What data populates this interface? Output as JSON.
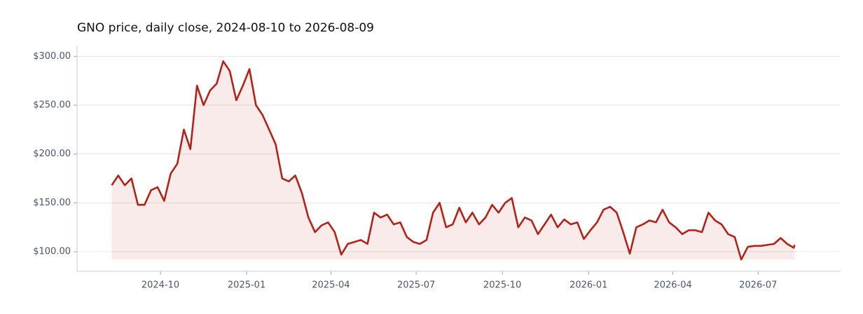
{
  "chart_data": {
    "type": "line",
    "title": "GNO price, daily close, 2024-08-10 to 2026-08-09",
    "x": [
      "2024-08-10",
      "2024-08-17",
      "2024-08-24",
      "2024-08-31",
      "2024-09-07",
      "2024-09-14",
      "2024-09-21",
      "2024-09-28",
      "2024-10-05",
      "2024-10-12",
      "2024-10-19",
      "2024-10-26",
      "2024-11-02",
      "2024-11-09",
      "2024-11-16",
      "2024-11-23",
      "2024-11-30",
      "2024-12-07",
      "2024-12-14",
      "2024-12-21",
      "2024-12-28",
      "2025-01-04",
      "2025-01-11",
      "2025-01-18",
      "2025-01-25",
      "2025-02-01",
      "2025-02-08",
      "2025-02-15",
      "2025-02-22",
      "2025-03-01",
      "2025-03-08",
      "2025-03-15",
      "2025-03-22",
      "2025-03-29",
      "2025-04-05",
      "2025-04-12",
      "2025-04-19",
      "2025-04-26",
      "2025-05-03",
      "2025-05-10",
      "2025-05-17",
      "2025-05-24",
      "2025-05-31",
      "2025-06-07",
      "2025-06-14",
      "2025-06-21",
      "2025-06-28",
      "2025-07-05",
      "2025-07-12",
      "2025-07-19",
      "2025-07-26",
      "2025-08-02",
      "2025-08-09",
      "2025-08-16",
      "2025-08-23",
      "2025-08-30",
      "2025-09-06",
      "2025-09-13",
      "2025-09-20",
      "2025-09-27",
      "2025-10-04",
      "2025-10-11",
      "2025-10-18",
      "2025-10-25",
      "2025-11-01",
      "2025-11-08",
      "2025-11-15",
      "2025-11-22",
      "2025-11-29",
      "2025-12-06",
      "2025-12-13",
      "2025-12-20",
      "2025-12-27",
      "2026-01-03",
      "2026-01-10",
      "2026-01-17",
      "2026-01-24",
      "2026-01-31",
      "2026-02-07",
      "2026-02-14",
      "2026-02-21",
      "2026-02-28",
      "2026-03-07",
      "2026-03-14",
      "2026-03-21",
      "2026-03-28",
      "2026-04-04",
      "2026-04-11",
      "2026-04-18",
      "2026-04-25",
      "2026-05-02",
      "2026-05-09",
      "2026-05-16",
      "2026-05-23",
      "2026-05-30",
      "2026-06-06",
      "2026-06-13",
      "2026-06-20",
      "2026-06-27",
      "2026-07-04",
      "2026-07-11",
      "2026-07-18",
      "2026-07-25",
      "2026-08-01",
      "2026-08-08",
      "2026-08-09"
    ],
    "series": [
      {
        "name": "GNO",
        "color": "#b22218",
        "values": [
          168,
          178,
          168,
          175,
          148,
          148,
          163,
          166,
          152,
          180,
          190,
          225,
          205,
          270,
          250,
          265,
          272,
          295,
          285,
          255,
          270,
          287,
          250,
          240,
          225,
          210,
          175,
          172,
          178,
          160,
          135,
          120,
          127,
          130,
          120,
          97,
          108,
          110,
          112,
          108,
          140,
          135,
          138,
          128,
          130,
          115,
          110,
          108,
          112,
          140,
          150,
          125,
          128,
          145,
          130,
          140,
          128,
          135,
          148,
          140,
          150,
          155,
          125,
          135,
          132,
          118,
          128,
          138,
          125,
          133,
          128,
          130,
          113,
          122,
          130,
          143,
          146,
          140,
          120,
          98,
          125,
          128,
          132,
          130,
          143,
          130,
          125,
          118,
          122,
          122,
          120,
          140,
          132,
          128,
          118,
          115,
          92,
          105,
          106,
          106,
          107,
          108,
          114,
          108,
          104,
          107
        ]
      }
    ],
    "xlim": [
      "2024-07-04",
      "2026-09-27"
    ],
    "xticks": [
      {
        "value": "2024-10-01",
        "label": "2024-10"
      },
      {
        "value": "2025-01-01",
        "label": "2025-01"
      },
      {
        "value": "2025-04-01",
        "label": "2025-04"
      },
      {
        "value": "2025-07-01",
        "label": "2025-07"
      },
      {
        "value": "2025-10-01",
        "label": "2025-10"
      },
      {
        "value": "2026-01-01",
        "label": "2026-01"
      },
      {
        "value": "2026-04-01",
        "label": "2026-04"
      },
      {
        "value": "2026-07-01",
        "label": "2026-07"
      }
    ],
    "ylim": [
      80,
      311
    ],
    "yticks": [
      {
        "value": 100,
        "label": "$100.00"
      },
      {
        "value": 150,
        "label": "$150.00"
      },
      {
        "value": 200,
        "label": "$200.00"
      },
      {
        "value": 250,
        "label": "$250.00"
      },
      {
        "value": 300,
        "label": "$300.00"
      }
    ],
    "grid": true
  }
}
